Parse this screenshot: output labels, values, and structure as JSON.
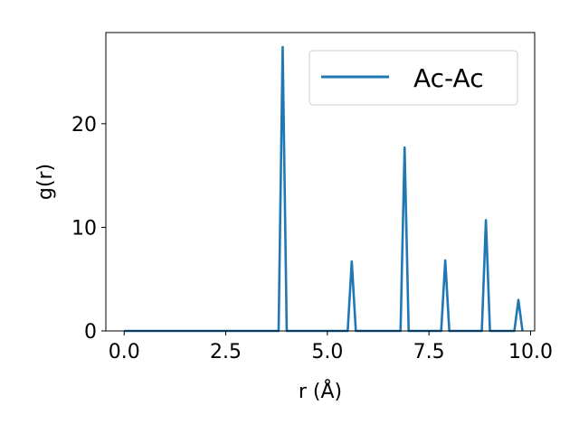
{
  "chart_data": {
    "type": "line",
    "xlabel": "r (Å)",
    "ylabel": "g(r)",
    "xlim": [
      -0.45,
      10.1
    ],
    "ylim": [
      0,
      28.8
    ],
    "xticks": [
      0.0,
      2.5,
      5.0,
      7.5,
      10.0
    ],
    "xtick_labels": [
      "0.0",
      "2.5",
      "5.0",
      "7.5",
      "10.0"
    ],
    "yticks": [
      0,
      10,
      20
    ],
    "ytick_labels": [
      "0",
      "10",
      "20"
    ],
    "grid": false,
    "legend_position": "top-right",
    "series": [
      {
        "name": "Ac-Ac",
        "color": "#1f77b4",
        "x": [
          0.0,
          3.8,
          3.9,
          4.0,
          5.5,
          5.6,
          5.7,
          6.8,
          6.9,
          7.0,
          7.8,
          7.9,
          8.0,
          8.8,
          8.9,
          9.0,
          9.6,
          9.7,
          9.8
        ],
        "y": [
          0,
          0,
          27.4,
          0,
          0,
          6.7,
          0,
          0,
          17.7,
          0,
          0,
          6.8,
          0,
          0,
          10.7,
          0,
          0,
          3.0,
          0
        ]
      }
    ]
  }
}
